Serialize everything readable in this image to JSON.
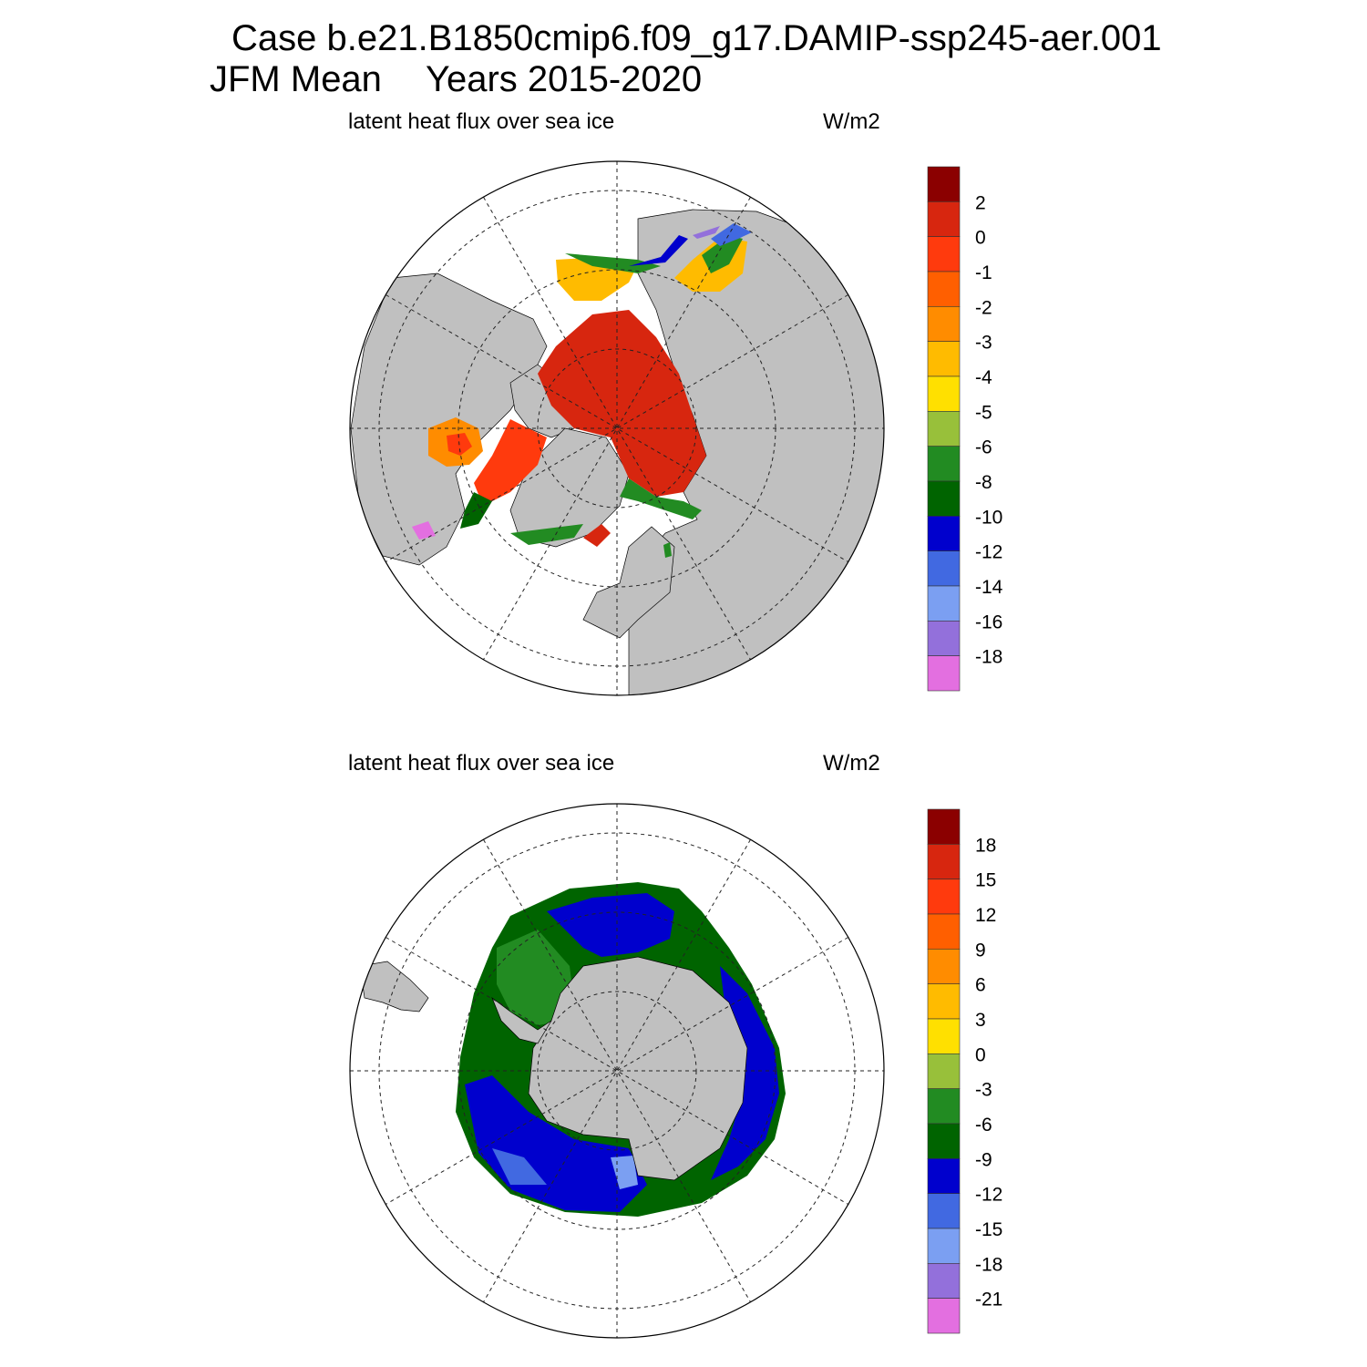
{
  "title": {
    "line1": "Case b.e21.B1850cmip6.f09_g17.DAMIP-ssp245-aer.001",
    "season": "JFM Mean",
    "years": "Years 2015-2020"
  },
  "panels": [
    {
      "name": "arctic",
      "hemisphere": "north",
      "left_label": "latent heat flux over sea ice",
      "right_label": "W/m2",
      "colorbar": {
        "labels": [
          "2",
          "0",
          "-1",
          "-2",
          "-3",
          "-4",
          "-5",
          "-6",
          "-8",
          "-10",
          "-12",
          "-14",
          "-16",
          "-18"
        ],
        "colors": [
          "#8b0000",
          "#d7260f",
          "#ff3a0d",
          "#ff5f00",
          "#ff8c00",
          "#ffbb00",
          "#ffe000",
          "#98c03a",
          "#228b22",
          "#006400",
          "#0000cd",
          "#4169e1",
          "#7b9ff2",
          "#9370db",
          "#e36fe0"
        ]
      }
    },
    {
      "name": "antarctic",
      "hemisphere": "south",
      "left_label": "latent heat flux over sea ice",
      "right_label": "W/m2",
      "colorbar": {
        "labels": [
          "18",
          "15",
          "12",
          "9",
          "6",
          "3",
          "0",
          "-3",
          "-6",
          "-9",
          "-12",
          "-15",
          "-18",
          "-21"
        ],
        "colors": [
          "#8b0000",
          "#d7260f",
          "#ff3a0d",
          "#ff5f00",
          "#ff8c00",
          "#ffbb00",
          "#ffe000",
          "#98c03a",
          "#228b22",
          "#006400",
          "#0000cd",
          "#4169e1",
          "#7b9ff2",
          "#9370db",
          "#e36fe0"
        ]
      }
    }
  ],
  "colors": {
    "land": "#c0c0c0",
    "grid": "#222222"
  }
}
